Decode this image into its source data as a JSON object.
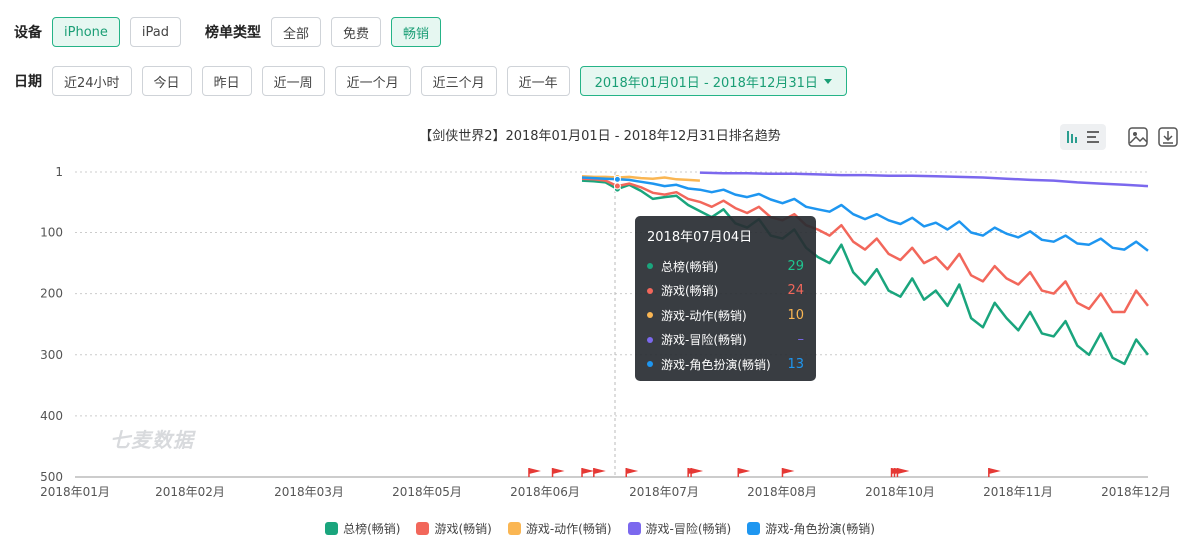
{
  "filters": {
    "device_label": "设备",
    "devices": [
      "iPhone",
      "iPad"
    ],
    "device_active": "iPhone",
    "list_type_label": "榜单类型",
    "list_types": [
      "全部",
      "免费",
      "畅销"
    ],
    "list_type_active": "畅销",
    "date_label": "日期",
    "date_options": [
      "近24小时",
      "今日",
      "昨日",
      "近一周",
      "近一个月",
      "近三个月",
      "近一年"
    ],
    "date_range": "2018年01月01日 - 2018年12月31日"
  },
  "watermark": "七麦数据",
  "tool_icons": [
    "bar-chart-icon",
    "list-icon",
    "image-icon",
    "download-icon"
  ],
  "colors": {
    "accent": "#25b387",
    "series": [
      "#1aa57d",
      "#f2675b",
      "#fab653",
      "#7b68ee",
      "#1e96f0"
    ]
  },
  "tooltip": {
    "title": "2018年07月04日",
    "rows": [
      {
        "name": "总榜(畅销)",
        "value": "29"
      },
      {
        "name": "游戏(畅销)",
        "value": "24"
      },
      {
        "name": "游戏-动作(畅销)",
        "value": "10"
      },
      {
        "name": "游戏-冒险(畅销)",
        "value": "–"
      },
      {
        "name": "游戏-角色扮演(畅销)",
        "value": "13"
      }
    ]
  },
  "chart_data": {
    "type": "line",
    "title": "【剑侠世界2】2018年01月01日 - 2018年12月31日排名趋势",
    "x_tick_labels": [
      "2018年01月",
      "2018年02月",
      "2018年03月",
      "2018年05月",
      "2018年06月",
      "2018年07月",
      "2018年08月",
      "2018年10月",
      "2018年11月",
      "2018年12月"
    ],
    "y_tick_labels": [
      "1",
      "100",
      "200",
      "300",
      "400",
      "500"
    ],
    "ylim": [
      1,
      500
    ],
    "y_inverted": true,
    "grid": true,
    "legend_position": "bottom",
    "series": [
      {
        "name": "总榜(畅销)",
        "x": [
          "2018-06-22",
          "2018-06-26",
          "2018-06-30",
          "2018-07-04",
          "2018-07-08",
          "2018-07-12",
          "2018-07-16",
          "2018-07-20",
          "2018-07-24",
          "2018-07-28",
          "2018-08-01",
          "2018-08-05",
          "2018-08-09",
          "2018-08-13",
          "2018-08-17",
          "2018-08-21",
          "2018-08-25",
          "2018-08-29",
          "2018-09-02",
          "2018-09-06",
          "2018-09-10",
          "2018-09-14",
          "2018-09-18",
          "2018-09-22",
          "2018-09-26",
          "2018-09-30",
          "2018-10-04",
          "2018-10-08",
          "2018-10-12",
          "2018-10-16",
          "2018-10-20",
          "2018-10-24",
          "2018-10-28",
          "2018-11-01",
          "2018-11-05",
          "2018-11-09",
          "2018-11-13",
          "2018-11-17",
          "2018-11-21",
          "2018-11-25",
          "2018-11-29",
          "2018-12-03",
          "2018-12-07",
          "2018-12-11",
          "2018-12-15",
          "2018-12-19",
          "2018-12-23",
          "2018-12-27",
          "2018-12-31"
        ],
        "y": [
          15,
          16,
          18,
          29,
          22,
          32,
          45,
          42,
          40,
          55,
          65,
          75,
          62,
          85,
          92,
          78,
          105,
          110,
          95,
          125,
          140,
          150,
          120,
          165,
          185,
          160,
          195,
          205,
          175,
          210,
          195,
          220,
          185,
          240,
          255,
          215,
          240,
          260,
          230,
          265,
          270,
          245,
          285,
          300,
          265,
          305,
          315,
          275,
          300
        ]
      },
      {
        "name": "游戏(畅销)",
        "x": [
          "2018-06-22",
          "2018-06-26",
          "2018-06-30",
          "2018-07-04",
          "2018-07-08",
          "2018-07-12",
          "2018-07-16",
          "2018-07-20",
          "2018-07-24",
          "2018-07-28",
          "2018-08-01",
          "2018-08-05",
          "2018-08-09",
          "2018-08-13",
          "2018-08-17",
          "2018-08-21",
          "2018-08-25",
          "2018-08-29",
          "2018-09-02",
          "2018-09-06",
          "2018-09-10",
          "2018-09-14",
          "2018-09-18",
          "2018-09-22",
          "2018-09-26",
          "2018-09-30",
          "2018-10-04",
          "2018-10-08",
          "2018-10-12",
          "2018-10-16",
          "2018-10-20",
          "2018-10-24",
          "2018-10-28",
          "2018-11-01",
          "2018-11-05",
          "2018-11-09",
          "2018-11-13",
          "2018-11-17",
          "2018-11-21",
          "2018-11-25",
          "2018-11-29",
          "2018-12-03",
          "2018-12-07",
          "2018-12-11",
          "2018-12-15",
          "2018-12-19",
          "2018-12-23",
          "2018-12-27",
          "2018-12-31"
        ],
        "y": [
          12,
          13,
          15,
          24,
          20,
          26,
          35,
          38,
          34,
          45,
          50,
          58,
          48,
          60,
          68,
          58,
          75,
          80,
          70,
          88,
          95,
          105,
          88,
          115,
          128,
          110,
          135,
          145,
          125,
          150,
          140,
          160,
          135,
          170,
          180,
          155,
          175,
          185,
          165,
          195,
          200,
          180,
          215,
          225,
          200,
          230,
          230,
          195,
          220
        ]
      },
      {
        "name": "游戏-动作(畅销)",
        "x": [
          "2018-06-22",
          "2018-06-26",
          "2018-06-30",
          "2018-07-04",
          "2018-07-08",
          "2018-07-12",
          "2018-07-16",
          "2018-07-20",
          "2018-07-24",
          "2018-07-28",
          "2018-08-01"
        ],
        "y": [
          8,
          9,
          9,
          10,
          9,
          11,
          12,
          10,
          13,
          14,
          15
        ]
      },
      {
        "name": "游戏-冒险(畅销)",
        "x": [
          "2018-08-01",
          "2018-08-09",
          "2018-08-17",
          "2018-08-25",
          "2018-09-02",
          "2018-09-10",
          "2018-09-18",
          "2018-09-26",
          "2018-10-04",
          "2018-10-12",
          "2018-10-20",
          "2018-10-28",
          "2018-11-05",
          "2018-11-13",
          "2018-11-21",
          "2018-11-29",
          "2018-12-07",
          "2018-12-15",
          "2018-12-23",
          "2018-12-31"
        ],
        "y": [
          2,
          3,
          3,
          4,
          4,
          5,
          6,
          6,
          7,
          7,
          8,
          9,
          10,
          12,
          14,
          15,
          18,
          20,
          22,
          24
        ]
      },
      {
        "name": "游戏-角色扮演(畅销)",
        "x": [
          "2018-06-22",
          "2018-06-26",
          "2018-06-30",
          "2018-07-04",
          "2018-07-08",
          "2018-07-12",
          "2018-07-16",
          "2018-07-20",
          "2018-07-24",
          "2018-07-28",
          "2018-08-01",
          "2018-08-05",
          "2018-08-09",
          "2018-08-13",
          "2018-08-17",
          "2018-08-21",
          "2018-08-25",
          "2018-08-29",
          "2018-09-02",
          "2018-09-06",
          "2018-09-10",
          "2018-09-14",
          "2018-09-18",
          "2018-09-22",
          "2018-09-26",
          "2018-09-30",
          "2018-10-04",
          "2018-10-08",
          "2018-10-12",
          "2018-10-16",
          "2018-10-20",
          "2018-10-24",
          "2018-10-28",
          "2018-11-01",
          "2018-11-05",
          "2018-11-09",
          "2018-11-13",
          "2018-11-17",
          "2018-11-21",
          "2018-11-25",
          "2018-11-29",
          "2018-12-03",
          "2018-12-07",
          "2018-12-11",
          "2018-12-15",
          "2018-12-19",
          "2018-12-23",
          "2018-12-27",
          "2018-12-31"
        ],
        "y": [
          10,
          11,
          12,
          13,
          14,
          17,
          20,
          24,
          22,
          28,
          30,
          34,
          30,
          38,
          42,
          37,
          46,
          52,
          45,
          58,
          62,
          66,
          55,
          70,
          78,
          70,
          80,
          86,
          76,
          90,
          84,
          95,
          82,
          100,
          105,
          92,
          102,
          108,
          98,
          112,
          115,
          105,
          118,
          120,
          110,
          125,
          128,
          115,
          130
        ]
      }
    ],
    "event_markers": [
      "2018-06-04",
      "2018-06-12",
      "2018-06-22",
      "2018-06-26",
      "2018-07-07",
      "2018-07-28",
      "2018-07-29",
      "2018-08-14",
      "2018-08-29",
      "2018-10-05",
      "2018-10-06",
      "2018-10-07",
      "2018-11-07"
    ]
  }
}
